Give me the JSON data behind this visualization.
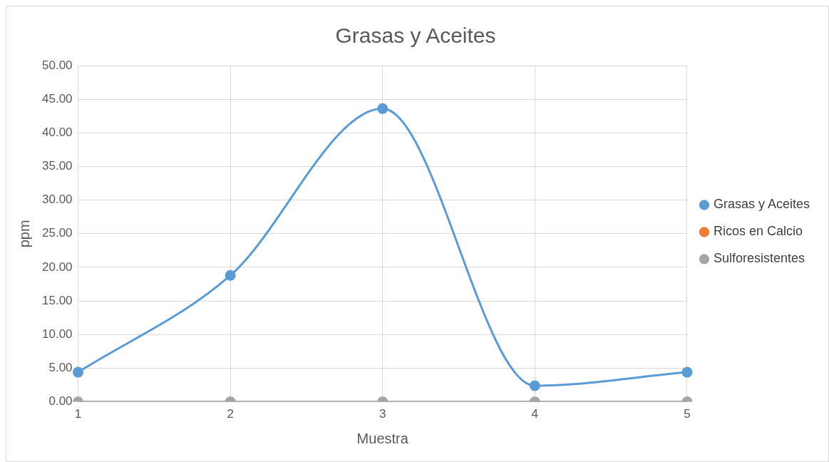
{
  "chart_data": {
    "type": "line",
    "title": "Grasas y Aceites",
    "xlabel": "Muestra",
    "ylabel": "ppm",
    "categories": [
      "1",
      "2",
      "3",
      "4",
      "5"
    ],
    "series": [
      {
        "name": "Grasas y Aceites",
        "color": "#5b9bd5",
        "values": [
          4.4,
          18.8,
          43.6,
          2.4,
          4.4
        ]
      },
      {
        "name": "Ricos en Calcio",
        "color": "#ed7d31",
        "values": [
          null,
          null,
          null,
          null,
          null
        ]
      },
      {
        "name": "Sulforesistentes",
        "color": "#a5a5a5",
        "values": [
          0,
          0,
          0,
          0,
          0
        ]
      }
    ],
    "ylim": [
      0,
      50
    ],
    "yticks": [
      {
        "value": 0,
        "label": "0.00"
      },
      {
        "value": 5,
        "label": "5.00"
      },
      {
        "value": 10,
        "label": "10.00"
      },
      {
        "value": 15,
        "label": "15.00"
      },
      {
        "value": 20,
        "label": "20.00"
      },
      {
        "value": 25,
        "label": "25.00"
      },
      {
        "value": 30,
        "label": "30.00"
      },
      {
        "value": 35,
        "label": "35.00"
      },
      {
        "value": 40,
        "label": "40.00"
      },
      {
        "value": 45,
        "label": "45.00"
      },
      {
        "value": 50,
        "label": "50.00"
      }
    ],
    "grid": true,
    "legend": "right",
    "marker": "circle",
    "line_style": "solid"
  }
}
